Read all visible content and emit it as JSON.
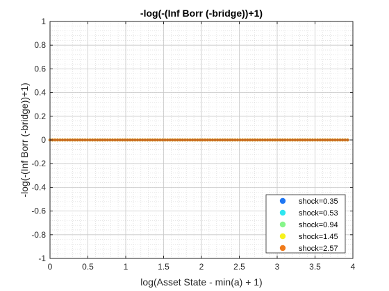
{
  "chart_data": {
    "type": "scatter",
    "title": "-log(-(Inf Borr (-bridge))+1)",
    "xlabel": "log(Asset State - min(a) + 1)",
    "ylabel": "-log(-(Inf Borr (-bridge))+1)",
    "xlim": [
      0,
      4
    ],
    "ylim": [
      -1,
      1
    ],
    "xticks": [
      0,
      0.5,
      1,
      1.5,
      2,
      2.5,
      3,
      3.5,
      4
    ],
    "xtick_labels": [
      "0",
      "0.5",
      "1",
      "1.5",
      "2",
      "2.5",
      "3",
      "3.5",
      "4"
    ],
    "yticks": [
      -1,
      -0.8,
      -0.6,
      -0.4,
      -0.2,
      0,
      0.2,
      0.4,
      0.6,
      0.8,
      1
    ],
    "ytick_labels": [
      "-1",
      "-0.8",
      "-0.6",
      "-0.4",
      "-0.2",
      "0",
      "0.2",
      "0.4",
      "0.6",
      "0.8",
      "1"
    ],
    "grid": true,
    "minor_grid": true,
    "legend_position": "bottom-right",
    "x_range_of_points": [
      0,
      3.93
    ],
    "points_per_series": 120,
    "series": [
      {
        "name": "shock=0.35",
        "color": "#1f77f4",
        "y_value": 0
      },
      {
        "name": "shock=0.53",
        "color": "#2ee6f0",
        "y_value": 0
      },
      {
        "name": "shock=0.94",
        "color": "#86f58a",
        "y_value": 0
      },
      {
        "name": "shock=1.45",
        "color": "#f7f21c",
        "y_value": 0
      },
      {
        "name": "shock=2.57",
        "color": "#f07a1a",
        "y_value": 0
      }
    ]
  }
}
